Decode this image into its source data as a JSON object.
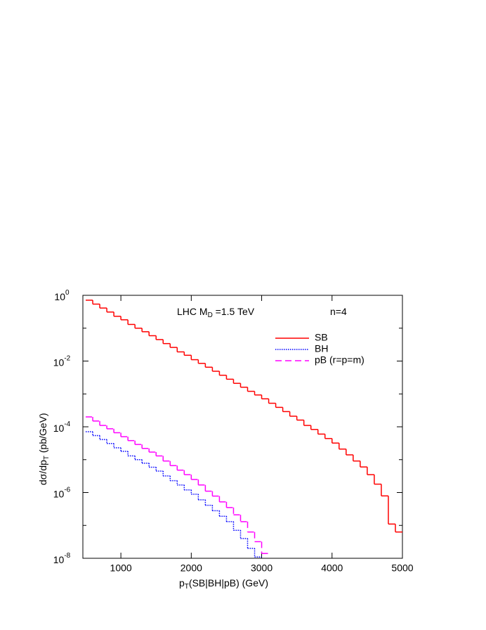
{
  "chart_data": {
    "type": "histogram-step",
    "ylabel": [
      "dσ/dp",
      "T",
      " (pb/GeV)"
    ],
    "xlabel": [
      "p",
      "T",
      "(SB|BH|pB)      (GeV)"
    ],
    "annotations": [
      [
        "LHC  M",
        "D",
        " =1.5 TeV"
      ],
      [
        "n=4"
      ]
    ],
    "xlim": [
      460,
      5000
    ],
    "xticks": [
      1000,
      2000,
      3000,
      4000,
      5000
    ],
    "ylim": [
      1e-08,
      1
    ],
    "log_y": true,
    "yticks": [
      {
        "value": 1,
        "label": [
          "10",
          "0"
        ]
      },
      {
        "value": 0.01,
        "label": [
          "10",
          "-2"
        ]
      },
      {
        "value": 0.0001,
        "label": [
          "10",
          "-4"
        ]
      },
      {
        "value": 1e-06,
        "label": [
          "10",
          "-6"
        ]
      },
      {
        "value": 1e-08,
        "label": [
          "10",
          "-8"
        ]
      }
    ],
    "yminor_ticks": [
      0.1,
      0.001,
      1e-05,
      1e-07
    ],
    "legend": "upper right",
    "bins": [
      500,
      600,
      700,
      800,
      900,
      1000,
      1100,
      1200,
      1300,
      1400,
      1500,
      1600,
      1700,
      1800,
      1900,
      2000,
      2100,
      2200,
      2300,
      2400,
      2500,
      2600,
      2700,
      2800,
      2900,
      3000,
      3100,
      3200,
      3300,
      3400,
      3500,
      3600,
      3700,
      3800,
      3900,
      4000,
      4100,
      4200,
      4300,
      4400,
      4500,
      4600,
      4700,
      4800,
      4900,
      5000
    ],
    "series": [
      {
        "name": "SB",
        "color": "#ff0000",
        "style": "solid",
        "values": [
          0.71,
          0.54,
          0.41,
          0.31,
          0.23,
          0.18,
          0.13,
          0.1,
          0.078,
          0.059,
          0.045,
          0.034,
          0.026,
          0.019,
          0.015,
          0.011,
          0.0085,
          0.0065,
          0.0049,
          0.0037,
          0.0028,
          0.0021,
          0.0016,
          0.0012,
          0.00093,
          0.00071,
          0.00052,
          0.00039,
          0.00029,
          0.00021,
          0.00016,
          0.00011,
          8.3e-05,
          6e-05,
          4.4e-05,
          3.2e-05,
          2.1e-05,
          1.4e-05,
          9.1e-06,
          6e-06,
          3.5e-06,
          1.8e-06,
          7.9e-07,
          1.1e-07,
          6.3e-08
        ]
      },
      {
        "name": "BH",
        "color": "#0000ff",
        "style": "dotted",
        "values": [
          7.1e-05,
          5.4e-05,
          4.1e-05,
          3.1e-05,
          2.3e-05,
          1.8e-05,
          1.3e-05,
          1e-05,
          7.8e-06,
          5.9e-06,
          4.5e-06,
          3.2e-06,
          2.3e-06,
          1.7e-06,
          1.2e-06,
          8.9e-07,
          6e-07,
          4.1e-07,
          2.8e-07,
          1.9e-07,
          1.3e-07,
          7.1e-08,
          4e-08,
          2e-08,
          1.1e-08,
          null,
          null,
          null,
          null,
          null,
          null,
          null,
          null,
          null,
          null,
          null,
          null,
          null,
          null,
          null,
          null,
          null,
          null,
          null,
          null
        ]
      },
      {
        "name": "pB (r=p=m)",
        "color": "#ff00ff",
        "style": "dashed",
        "values": [
          0.0002,
          0.00015,
          0.00011,
          8.7e-05,
          6.6e-05,
          5e-05,
          3.8e-05,
          2.9e-05,
          2.2e-05,
          1.7e-05,
          1.3e-05,
          9.1e-06,
          6.6e-06,
          4.8e-06,
          3.5e-06,
          2.5e-06,
          1.7e-06,
          1.1e-06,
          7.8e-07,
          5.2e-07,
          3.5e-07,
          2.1e-07,
          1.3e-07,
          6.3e-08,
          3.2e-08,
          1.4e-08,
          null,
          null,
          null,
          null,
          null,
          null,
          null,
          null,
          null,
          null,
          null,
          null,
          null,
          null,
          null,
          null,
          null,
          null,
          null
        ]
      }
    ]
  }
}
